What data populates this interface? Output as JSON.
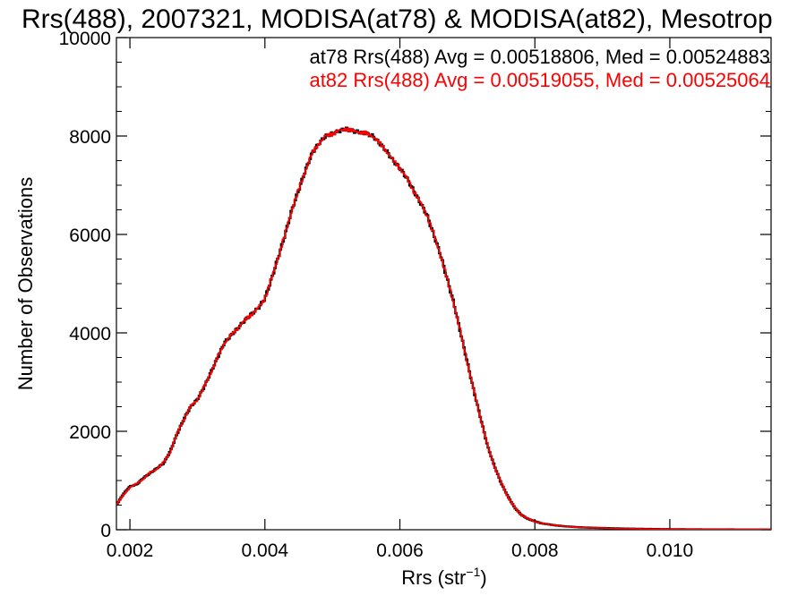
{
  "chart_data": {
    "type": "line",
    "title": "Rrs(488), 2007321, MODISA(at78) & MODISA(at82), Mesotrop",
    "xlabel_main": "Rrs (str",
    "xlabel_sup": "−1",
    "xlabel_close": ")",
    "ylabel": "Number of Observations",
    "xlim": [
      0.0018,
      0.0115
    ],
    "ylim": [
      0,
      10000
    ],
    "xticks": [
      0.002,
      0.004,
      0.006,
      0.008,
      0.01
    ],
    "xtick_labels": [
      "0.002",
      "0.004",
      "0.006",
      "0.008",
      "0.010"
    ],
    "yticks": [
      0,
      2000,
      4000,
      6000,
      8000,
      10000
    ],
    "ytick_labels": [
      "0",
      "2000",
      "4000",
      "6000",
      "8000",
      "10000"
    ],
    "grid": false,
    "style": "histogram-step",
    "annotations": [
      {
        "text": "at78 Rrs(488) Avg = 0.00518806, Med = 0.00524883",
        "color": "#000000"
      },
      {
        "text": "at82 Rrs(488) Avg = 0.00519055, Med = 0.00525064",
        "color": "#ff0000"
      }
    ],
    "x": [
      0.0018,
      0.0019,
      0.002,
      0.0021,
      0.0022,
      0.0023,
      0.0024,
      0.0025,
      0.0026,
      0.0027,
      0.0028,
      0.0029,
      0.003,
      0.0031,
      0.0032,
      0.0033,
      0.0034,
      0.0035,
      0.0036,
      0.0037,
      0.0038,
      0.0039,
      0.004,
      0.0041,
      0.0042,
      0.0043,
      0.0044,
      0.0045,
      0.0046,
      0.0047,
      0.0048,
      0.0049,
      0.005,
      0.0051,
      0.0052,
      0.0053,
      0.0054,
      0.0055,
      0.0056,
      0.0057,
      0.0058,
      0.0059,
      0.006,
      0.0061,
      0.0062,
      0.0063,
      0.0064,
      0.0065,
      0.0066,
      0.0067,
      0.0068,
      0.0069,
      0.007,
      0.0071,
      0.0072,
      0.0073,
      0.0074,
      0.0075,
      0.0076,
      0.0077,
      0.0078,
      0.0079,
      0.008,
      0.0081,
      0.0082,
      0.0083,
      0.0084,
      0.0085,
      0.0086,
      0.0087,
      0.0088,
      0.009,
      0.0092,
      0.0094,
      0.0096,
      0.0098,
      0.01,
      0.0102,
      0.0104,
      0.0106,
      0.0108,
      0.011,
      0.0112,
      0.0115
    ],
    "series": [
      {
        "name": "at78",
        "color": "#000000",
        "values": [
          500,
          720,
          880,
          920,
          1050,
          1150,
          1250,
          1350,
          1600,
          1950,
          2250,
          2500,
          2650,
          2900,
          3200,
          3500,
          3800,
          3950,
          4100,
          4250,
          4380,
          4500,
          4700,
          5100,
          5550,
          6000,
          6500,
          6900,
          7300,
          7650,
          7850,
          8000,
          8050,
          8100,
          8150,
          8100,
          8080,
          8050,
          8000,
          7850,
          7700,
          7500,
          7350,
          7150,
          6900,
          6650,
          6400,
          6000,
          5600,
          5100,
          4600,
          4000,
          3400,
          2800,
          2250,
          1700,
          1300,
          950,
          680,
          450,
          300,
          220,
          170,
          130,
          110,
          90,
          75,
          65,
          55,
          48,
          42,
          35,
          28,
          22,
          18,
          14,
          11,
          9,
          7,
          6,
          5,
          4,
          3,
          2
        ]
      },
      {
        "name": "at82",
        "color": "#ff0000",
        "values": [
          510,
          700,
          860,
          940,
          1030,
          1170,
          1230,
          1380,
          1580,
          1970,
          2230,
          2520,
          2630,
          2920,
          3180,
          3520,
          3780,
          3970,
          4080,
          4270,
          4360,
          4520,
          4680,
          5120,
          5530,
          6020,
          6480,
          6920,
          7280,
          7670,
          7830,
          8020,
          8030,
          8120,
          8130,
          8120,
          8060,
          8070,
          7980,
          7870,
          7680,
          7520,
          7330,
          7170,
          6880,
          6670,
          6380,
          6020,
          5580,
          5120,
          4580,
          4020,
          3380,
          2820,
          2230,
          1720,
          1280,
          970,
          660,
          460,
          290,
          230,
          160,
          135,
          105,
          95,
          72,
          68,
          52,
          50,
          40,
          36,
          27,
          23,
          17,
          15,
          10,
          9,
          7,
          6,
          5,
          4,
          3,
          2
        ]
      }
    ]
  }
}
